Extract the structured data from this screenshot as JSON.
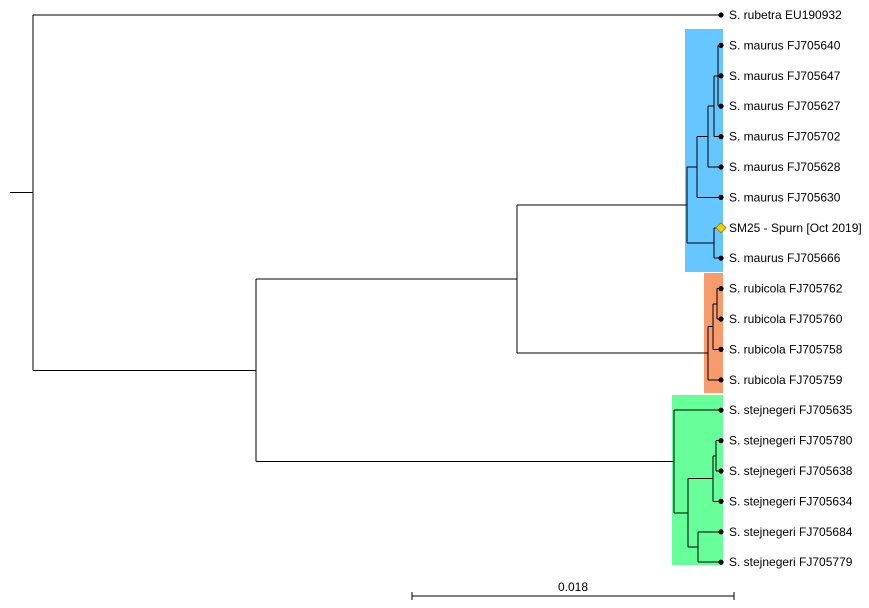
{
  "tree": {
    "clades": [
      {
        "name": "maurus",
        "color": "#66c6ff",
        "tips": [
          1,
          8
        ]
      },
      {
        "name": "rubicola",
        "color": "#f79a6c",
        "tips": [
          9,
          12
        ]
      },
      {
        "name": "stejnegeri",
        "color": "#66ff99",
        "tips": [
          13,
          18
        ]
      }
    ],
    "tips": [
      {
        "label": "S. rubetra EU190932",
        "marker": "dot"
      },
      {
        "label": "S. maurus FJ705640",
        "marker": "dot"
      },
      {
        "label": "S. maurus FJ705647",
        "marker": "dot"
      },
      {
        "label": "S. maurus FJ705627",
        "marker": "dot"
      },
      {
        "label": "S. maurus FJ705702",
        "marker": "dot"
      },
      {
        "label": "S. maurus FJ705628",
        "marker": "dot"
      },
      {
        "label": "S. maurus FJ705630",
        "marker": "dot"
      },
      {
        "label": "SM25 - Spurn [Oct 2019]",
        "marker": "diamond",
        "marker_color": "#f5d000"
      },
      {
        "label": "S. maurus FJ705666",
        "marker": "dot"
      },
      {
        "label": "S. rubicola FJ705762",
        "marker": "dot"
      },
      {
        "label": "S. rubicola FJ705760",
        "marker": "dot"
      },
      {
        "label": "S. rubicola FJ705758",
        "marker": "dot"
      },
      {
        "label": "S. rubicola FJ705759",
        "marker": "dot"
      },
      {
        "label": "S. stejnegeri FJ705635",
        "marker": "dot"
      },
      {
        "label": "S. stejnegeri FJ705780",
        "marker": "dot"
      },
      {
        "label": "S. stejnegeri FJ705638",
        "marker": "dot"
      },
      {
        "label": "S. stejnegeri FJ705634",
        "marker": "dot"
      },
      {
        "label": "S. stejnegeri FJ705684",
        "marker": "dot"
      },
      {
        "label": "S. stejnegeri FJ705779",
        "marker": "dot"
      }
    ],
    "scale_bar": {
      "label": "0.018",
      "value": 0.018
    }
  }
}
